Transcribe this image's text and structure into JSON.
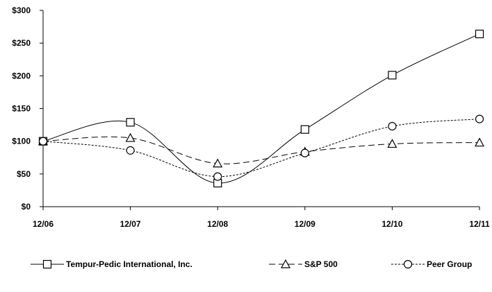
{
  "chart_data": {
    "type": "line",
    "categories": [
      "12/06",
      "12/07",
      "12/08",
      "12/09",
      "12/10",
      "12/11"
    ],
    "ylim": [
      0,
      300
    ],
    "yticks": [
      0,
      50,
      100,
      150,
      200,
      250,
      300
    ],
    "ytick_labels": [
      "$0",
      "$50",
      "$100",
      "$150",
      "$200",
      "$250",
      "$300"
    ],
    "grid": false,
    "legend_position": "bottom",
    "series": [
      {
        "name": "Tempur-Pedic International, Inc.",
        "marker": "square",
        "dash": "solid",
        "values": [
          100,
          129,
          36,
          118,
          201,
          264
        ]
      },
      {
        "name": "S&P 500",
        "marker": "triangle",
        "dash": "dashed",
        "values": [
          100,
          105,
          66,
          84,
          96,
          98
        ]
      },
      {
        "name": "Peer Group",
        "marker": "circle",
        "dash": "dotted",
        "values": [
          100,
          86,
          46,
          82,
          123,
          134
        ]
      }
    ]
  }
}
